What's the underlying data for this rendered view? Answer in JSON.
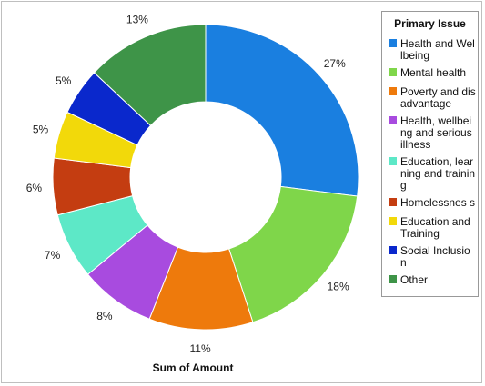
{
  "chart_data": {
    "type": "pie",
    "xlabel": "Sum of Amount",
    "legend_title": "Primary Issue",
    "legend_position": "right",
    "labels": [
      "Health and Wellbeing",
      "Mental health",
      "Poverty and disadvantage",
      "Health, wellbeing and serious illness",
      "Education, learning and training",
      "Homelessness",
      "Education and Training",
      "Social Inclusion",
      "Other"
    ],
    "legend_text": [
      "Health and Wellbeing",
      "Mental health",
      "Poverty and disadvantage",
      "Health, wellbeing and serious illness",
      "Education, learning and training",
      "Homelessnes s",
      "Education and Training",
      "Social Inclusion",
      "Other"
    ],
    "values": [
      27,
      18,
      11,
      8,
      7,
      6,
      5,
      5,
      13
    ],
    "percent_labels": [
      "27%",
      "18%",
      "11%",
      "8%",
      "7%",
      "6%",
      "5%",
      "5%",
      "13%"
    ],
    "colors": [
      "#1a7fe0",
      "#7fd64a",
      "#ee7a0c",
      "#a84bdf",
      "#5de8c7",
      "#c43d11",
      "#f2d90a",
      "#0a28cc",
      "#3e9448"
    ],
    "donut": true
  }
}
